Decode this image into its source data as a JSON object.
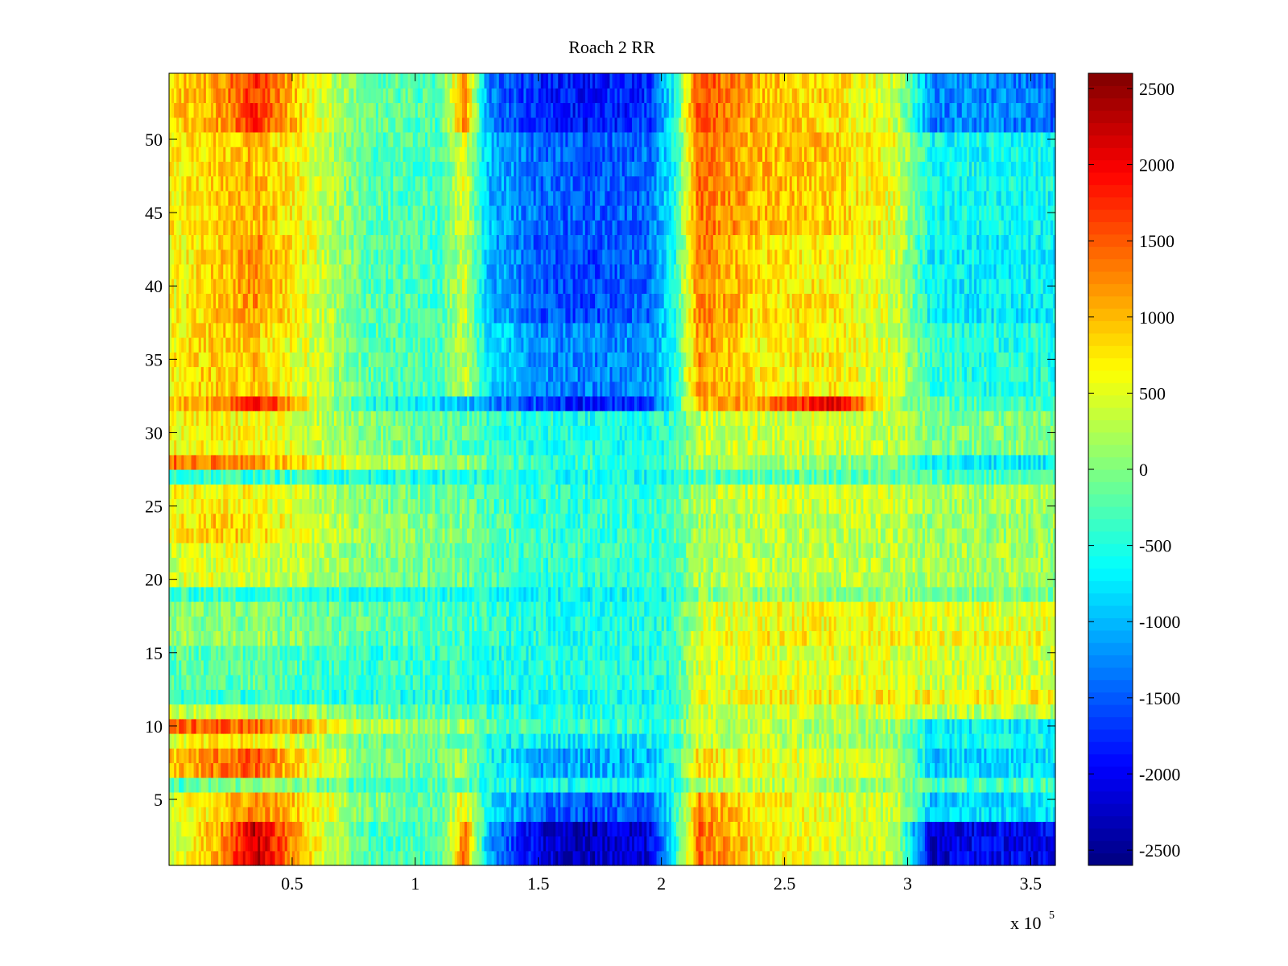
{
  "chart_data": {
    "type": "heatmap",
    "title": "Roach 2 RR",
    "xlabel": "",
    "ylabel": "",
    "x_range": [
      0,
      360000
    ],
    "y_range": [
      0.5,
      54.5
    ],
    "x_scale_label": "x 10",
    "x_scale_exponent": "5",
    "x_ticks": [
      {
        "value": 50000,
        "label": "0.5"
      },
      {
        "value": 100000,
        "label": "1"
      },
      {
        "value": 150000,
        "label": "1.5"
      },
      {
        "value": 200000,
        "label": "2"
      },
      {
        "value": 250000,
        "label": "2.5"
      },
      {
        "value": 300000,
        "label": "3"
      },
      {
        "value": 350000,
        "label": "3.5"
      }
    ],
    "y_ticks": [
      {
        "value": 5,
        "label": "5"
      },
      {
        "value": 10,
        "label": "10"
      },
      {
        "value": 15,
        "label": "15"
      },
      {
        "value": 20,
        "label": "20"
      },
      {
        "value": 25,
        "label": "25"
      },
      {
        "value": 30,
        "label": "30"
      },
      {
        "value": 35,
        "label": "35"
      },
      {
        "value": 40,
        "label": "40"
      },
      {
        "value": 45,
        "label": "45"
      },
      {
        "value": 50,
        "label": "50"
      }
    ],
    "colorbar": {
      "colormap": "jet",
      "range": [
        -2600,
        2600
      ],
      "ticks": [
        {
          "value": 2500,
          "label": "2500"
        },
        {
          "value": 2000,
          "label": "2000"
        },
        {
          "value": 1500,
          "label": "1500"
        },
        {
          "value": 1000,
          "label": "1000"
        },
        {
          "value": 500,
          "label": "500"
        },
        {
          "value": 0,
          "label": "0"
        },
        {
          "value": -500,
          "label": "-500"
        },
        {
          "value": -1000,
          "label": "-1000"
        },
        {
          "value": -1500,
          "label": "-1500"
        },
        {
          "value": -2000,
          "label": "-2000"
        },
        {
          "value": -2500,
          "label": "-2500"
        }
      ]
    },
    "grid": false,
    "rows": 54,
    "x_breakpoints": [
      0,
      20000,
      35000,
      55000,
      80000,
      110000,
      120000,
      130000,
      150000,
      170000,
      195000,
      205000,
      215000,
      240000,
      270000,
      295000,
      310000,
      330000,
      360000
    ],
    "row_bands": [
      {
        "rows": [
          1,
          3
        ],
        "values": [
          300,
          1100,
          2300,
          900,
          -300,
          -300,
          1300,
          -1100,
          -2100,
          -2300,
          -2100,
          -700,
          1400,
          700,
          500,
          300,
          -2200,
          -2000,
          -2000
        ]
      },
      {
        "rows": [
          4,
          5
        ],
        "values": [
          400,
          800,
          1300,
          800,
          0,
          -200,
          700,
          -700,
          -1400,
          -1500,
          -1400,
          -600,
          1200,
          700,
          500,
          400,
          -900,
          -800,
          -800
        ]
      },
      {
        "rows": [
          6,
          6
        ],
        "values": [
          -300,
          -100,
          100,
          0,
          -300,
          -300,
          -200,
          -500,
          -600,
          -600,
          -600,
          -500,
          300,
          300,
          200,
          100,
          -300,
          -300,
          -300
        ]
      },
      {
        "rows": [
          7,
          8
        ],
        "values": [
          900,
          1300,
          1500,
          700,
          0,
          -100,
          200,
          -600,
          -1100,
          -1100,
          -1000,
          -500,
          800,
          500,
          400,
          300,
          -900,
          -800,
          -800
        ]
      },
      {
        "rows": [
          9,
          9
        ],
        "values": [
          500,
          700,
          700,
          400,
          -100,
          -200,
          -100,
          -500,
          -700,
          -700,
          -700,
          -500,
          300,
          300,
          200,
          100,
          -600,
          -600,
          -600
        ]
      },
      {
        "rows": [
          10,
          10
        ],
        "values": [
          1400,
          1500,
          1400,
          1000,
          300,
          100,
          200,
          -200,
          -400,
          -400,
          -400,
          -200,
          300,
          300,
          200,
          100,
          -700,
          -700,
          -700
        ]
      },
      {
        "rows": [
          11,
          11
        ],
        "values": [
          300,
          300,
          300,
          200,
          -100,
          -200,
          -200,
          -400,
          -500,
          -500,
          -500,
          -400,
          400,
          400,
          400,
          400,
          300,
          300,
          300
        ]
      },
      {
        "rows": [
          12,
          12
        ],
        "values": [
          -400,
          -400,
          -400,
          -400,
          -500,
          -500,
          -500,
          -600,
          -600,
          -600,
          -600,
          -500,
          500,
          700,
          700,
          700,
          700,
          700,
          800
        ]
      },
      {
        "rows": [
          13,
          15
        ],
        "values": [
          -200,
          -200,
          -200,
          -300,
          -400,
          -400,
          -400,
          -500,
          -500,
          -500,
          -500,
          -400,
          400,
          500,
          500,
          500,
          400,
          400,
          400
        ]
      },
      {
        "rows": [
          16,
          16
        ],
        "values": [
          100,
          100,
          100,
          0,
          -200,
          -300,
          -300,
          -400,
          -500,
          -500,
          -500,
          -400,
          500,
          700,
          700,
          700,
          600,
          600,
          600
        ]
      },
      {
        "rows": [
          17,
          18
        ],
        "values": [
          0,
          0,
          0,
          -100,
          -200,
          -300,
          -300,
          -400,
          -500,
          -500,
          -500,
          -400,
          400,
          600,
          600,
          600,
          500,
          500,
          500
        ]
      },
      {
        "rows": [
          19,
          19
        ],
        "values": [
          -400,
          -400,
          -400,
          -400,
          -500,
          -500,
          -500,
          -600,
          -600,
          -600,
          -600,
          -500,
          0,
          100,
          100,
          100,
          0,
          0,
          0
        ]
      },
      {
        "rows": [
          20,
          22
        ],
        "values": [
          400,
          500,
          400,
          300,
          0,
          -100,
          -100,
          -300,
          -400,
          -400,
          -400,
          -300,
          200,
          300,
          300,
          300,
          200,
          200,
          200
        ]
      },
      {
        "rows": [
          23,
          24
        ],
        "values": [
          700,
          900,
          800,
          500,
          100,
          0,
          0,
          -200,
          -400,
          -400,
          -400,
          -300,
          200,
          300,
          300,
          300,
          100,
          100,
          100
        ]
      },
      {
        "rows": [
          25,
          26
        ],
        "values": [
          600,
          700,
          600,
          400,
          0,
          -100,
          -100,
          -300,
          -400,
          -400,
          -400,
          -300,
          300,
          400,
          400,
          400,
          200,
          200,
          200
        ]
      },
      {
        "rows": [
          27,
          27
        ],
        "values": [
          -400,
          -400,
          -400,
          -400,
          -500,
          -500,
          -500,
          -500,
          -600,
          -600,
          -600,
          -500,
          -300,
          -200,
          -200,
          -200,
          -300,
          -300,
          -300
        ]
      },
      {
        "rows": [
          28,
          28
        ],
        "values": [
          1400,
          1300,
          1100,
          800,
          300,
          100,
          100,
          -200,
          -400,
          -400,
          -400,
          -300,
          200,
          200,
          100,
          0,
          -600,
          -700,
          -700
        ]
      },
      {
        "rows": [
          29,
          31
        ],
        "values": [
          600,
          700,
          600,
          400,
          0,
          -200,
          -200,
          -400,
          -500,
          -500,
          -500,
          -400,
          300,
          400,
          400,
          300,
          0,
          0,
          0
        ]
      },
      {
        "rows": [
          32,
          32
        ],
        "values": [
          1000,
          1200,
          2100,
          700,
          -500,
          -800,
          -800,
          -1300,
          -1600,
          -1900,
          -1600,
          -600,
          1000,
          1200,
          2100,
          300,
          -200,
          -300,
          -300
        ]
      },
      {
        "rows": [
          33,
          37
        ],
        "values": [
          700,
          900,
          900,
          500,
          -200,
          -300,
          300,
          -800,
          -1200,
          -1300,
          -1200,
          -600,
          1200,
          700,
          700,
          400,
          -400,
          -500,
          -500
        ]
      },
      {
        "rows": [
          38,
          43
        ],
        "values": [
          600,
          900,
          1200,
          600,
          -200,
          -300,
          400,
          -1000,
          -1500,
          -1600,
          -1400,
          -600,
          1300,
          800,
          700,
          400,
          -700,
          -700,
          -700
        ]
      },
      {
        "rows": [
          44,
          50
        ],
        "values": [
          700,
          900,
          1000,
          600,
          -200,
          -300,
          500,
          -1000,
          -1400,
          -1500,
          -1400,
          -600,
          1400,
          1000,
          900,
          500,
          -600,
          -600,
          -600
        ]
      },
      {
        "rows": [
          51,
          54
        ],
        "values": [
          800,
          1100,
          1800,
          700,
          -100,
          -300,
          1200,
          -1300,
          -1800,
          -1900,
          -1700,
          -600,
          1600,
          1000,
          800,
          400,
          -1300,
          -1200,
          -1400
        ]
      }
    ]
  }
}
